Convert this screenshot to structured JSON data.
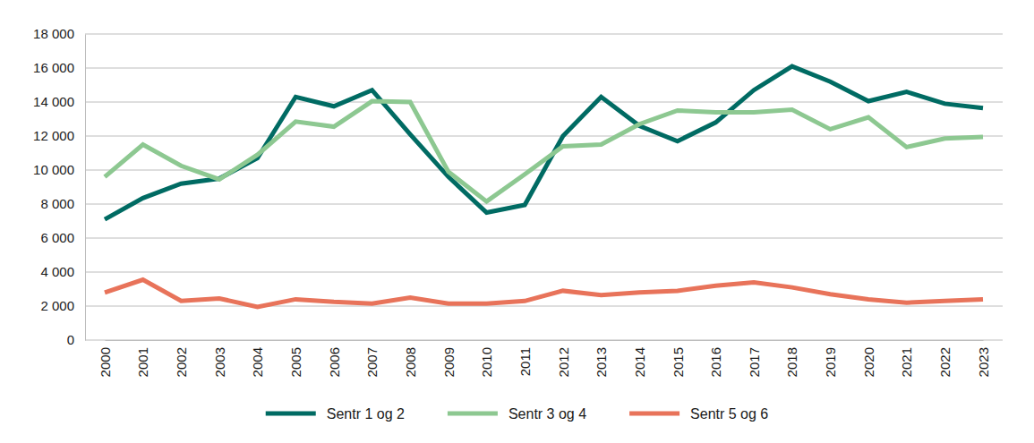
{
  "chart_data": {
    "type": "line",
    "categories": [
      "2000",
      "2001",
      "2002",
      "2003",
      "2004",
      "2005",
      "2006",
      "2007",
      "2008",
      "2009",
      "2010",
      "2011",
      "2012",
      "2013",
      "2014",
      "2015",
      "2016",
      "2017",
      "2018",
      "2019",
      "2020",
      "2021",
      "2022",
      "2023"
    ],
    "series": [
      {
        "name": "Sentr 1 og 2",
        "color": "#006b63",
        "values": [
          7100,
          8350,
          9200,
          9500,
          10700,
          14300,
          13750,
          14700,
          12100,
          9600,
          7500,
          7950,
          12000,
          14300,
          12600,
          11700,
          12800,
          14700,
          16100,
          15200,
          14050,
          14600,
          13900,
          13650
        ]
      },
      {
        "name": "Sentr 3 og 4",
        "color": "#8dc891",
        "values": [
          9600,
          11500,
          10250,
          9450,
          10900,
          12850,
          12550,
          14050,
          14000,
          9900,
          8150,
          9750,
          11400,
          11500,
          12700,
          13500,
          13400,
          13400,
          13550,
          12400,
          13100,
          11350,
          11850,
          11950
        ]
      },
      {
        "name": "Sentr 5 og 6",
        "color": "#e8735a",
        "values": [
          2800,
          3550,
          2300,
          2450,
          1950,
          2400,
          2250,
          2150,
          2500,
          2150,
          2150,
          2300,
          2900,
          2650,
          2800,
          2900,
          3200,
          3400,
          3100,
          2700,
          2400,
          2200,
          2300,
          2400
        ]
      }
    ],
    "ylim": [
      0,
      18000
    ],
    "yticks": [
      0,
      {
        "value": 2000,
        "label": "2 000"
      },
      {
        "value": 4000,
        "label": "4 000"
      },
      {
        "value": 6000,
        "label": "6 000"
      },
      {
        "value": 8000,
        "label": "8 000"
      },
      {
        "value": 10000,
        "label": "10 000"
      },
      {
        "value": 12000,
        "label": "12 000"
      },
      {
        "value": 14000,
        "label": "14 000"
      },
      {
        "value": 16000,
        "label": "16 000"
      },
      {
        "value": 18000,
        "label": "18 000"
      }
    ],
    "grid": true,
    "legend": "bottom"
  }
}
